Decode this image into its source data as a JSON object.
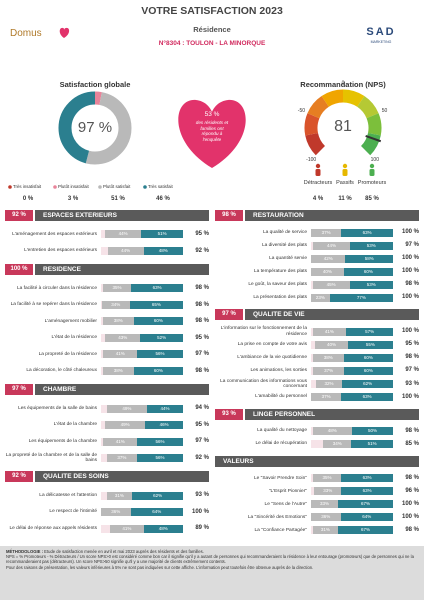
{
  "header": {
    "title": "VOTRE SATISFACTION 2023",
    "subtitle": "Résidence",
    "site": "N°8304 : TOULON - LA MINORQUE",
    "logo_left": "Domus",
    "logo_right": "SAD",
    "logo_right_tag": "MARKETING"
  },
  "summary": {
    "satisfaction": {
      "title": "Satisfaction globale",
      "score": "97 %",
      "categories": [
        "Très insatisfait",
        "Plutôt insatisfait",
        "Plutôt satisfait",
        "Très satisfait"
      ],
      "values": [
        0,
        3,
        51,
        46
      ],
      "value_labels": [
        "0 %",
        "3 %",
        "51 %",
        "46 %"
      ],
      "colors": [
        "#c0392b",
        "#e8849a",
        "#b9b9b9",
        "#2b7f8f"
      ]
    },
    "participation": {
      "value": "53 %",
      "text": "des résidents et familles ont répondu à l'enquête"
    },
    "nps": {
      "title": "Recommandation (NPS)",
      "score": 81,
      "ticks": [
        -100,
        -50,
        0,
        50,
        100
      ],
      "groups": [
        {
          "name": "Détracteurs",
          "value": "4 %",
          "color": "#c0392b"
        },
        {
          "name": "Passifs",
          "value": "11 %",
          "color": "#e6b800"
        },
        {
          "name": "Promoteurs",
          "value": "85 %",
          "color": "#4caf50"
        }
      ]
    }
  },
  "columns": [
    [
      {
        "score": "92 %",
        "title": "ESPACES EXTERIEURS",
        "items": [
          {
            "label": "L'aménagement des espaces extérieurs",
            "values": [
              44,
              51
            ],
            "value_labels": [
              "44%",
              "51%"
            ],
            "total": "95 %"
          },
          {
            "label": "L'entretien des espaces extérieurs",
            "values": [
              44,
              48
            ],
            "value_labels": [
              "44%",
              "48%"
            ],
            "total": "92 %"
          }
        ]
      },
      {
        "score": "100 %",
        "title": "RESIDENCE",
        "items": [
          {
            "label": "La facilité à circuler dans la résidence",
            "values": [
              35,
              63
            ],
            "value_labels": [
              "35%",
              "63%"
            ],
            "total": "98 %"
          },
          {
            "label": "La facilité à se repérer dans la résidence",
            "values": [
              34,
              65
            ],
            "value_labels": [
              "34%",
              "65%"
            ],
            "total": "98 %"
          },
          {
            "label": "L'aménagement mobilier",
            "values": [
              38,
              60
            ],
            "value_labels": [
              "38%",
              "60%"
            ],
            "total": "98 %"
          },
          {
            "label": "L'état de la résidence",
            "values": [
              43,
              52
            ],
            "value_labels": [
              "43%",
              "52%"
            ],
            "total": "95 %"
          },
          {
            "label": "La propreté de la résidence",
            "values": [
              41,
              56
            ],
            "value_labels": [
              "41%",
              "56%"
            ],
            "total": "97 %"
          },
          {
            "label": "La décoration, le côté chaleureux",
            "values": [
              38,
              60
            ],
            "value_labels": [
              "38%",
              "60%"
            ],
            "total": "98 %"
          }
        ]
      },
      {
        "score": "97 %",
        "title": "CHAMBRE",
        "items": [
          {
            "label": "Les équipements de la salle de bains",
            "values": [
              49,
              44
            ],
            "value_labels": [
              "49%",
              "44%"
            ],
            "total": "94 %"
          },
          {
            "label": "L'état de la chambre",
            "values": [
              49,
              46
            ],
            "value_labels": [
              "49%",
              "46%"
            ],
            "total": "95 %"
          },
          {
            "label": "Les équipements de la chambre",
            "values": [
              41,
              56
            ],
            "value_labels": [
              "41%",
              "56%"
            ],
            "total": "97 %"
          },
          {
            "label": "La propreté de la chambre et de la salle de bains",
            "values": [
              37,
              56
            ],
            "value_labels": [
              "37%",
              "56%"
            ],
            "total": "92 %"
          }
        ]
      },
      {
        "score": "92 %",
        "title": "QUALITE DES SOINS",
        "items": [
          {
            "label": "La délicatesse et l'attention",
            "values": [
              31,
              62
            ],
            "value_labels": [
              "31%",
              "62%"
            ],
            "total": "93 %"
          },
          {
            "label": "Le respect de l'intimité",
            "values": [
              36,
              64
            ],
            "value_labels": [
              "36%",
              "64%"
            ],
            "total": "100 %"
          },
          {
            "label": "Le délai de réponse aux appels résidents",
            "values": [
              41,
              48
            ],
            "value_labels": [
              "41%",
              "48%"
            ],
            "total": "89 %"
          }
        ]
      }
    ],
    [
      {
        "score": "98 %",
        "title": "RESTAURATION",
        "items": [
          {
            "label": "La qualité de service",
            "values": [
              37,
              63
            ],
            "value_labels": [
              "37%",
              "63%"
            ],
            "total": "100 %"
          },
          {
            "label": "La diversité des plats",
            "values": [
              44,
              53
            ],
            "value_labels": [
              "44%",
              "53%"
            ],
            "total": "97 %"
          },
          {
            "label": "La quantité servie",
            "values": [
              42,
              58
            ],
            "value_labels": [
              "42%",
              "58%"
            ],
            "total": "100 %"
          },
          {
            "label": "La température des plats",
            "values": [
              40,
              60
            ],
            "value_labels": [
              "40%",
              "60%"
            ],
            "total": "100 %"
          },
          {
            "label": "Le goût, la saveur des plats",
            "values": [
              45,
              53
            ],
            "value_labels": [
              "45%",
              "53%"
            ],
            "total": "98 %"
          },
          {
            "label": "La présentation des plats",
            "values": [
              23,
              77
            ],
            "value_labels": [
              "23%",
              "77%"
            ],
            "total": "100 %"
          }
        ]
      },
      {
        "score": "97 %",
        "title": "QUALITE DE VIE",
        "items": [
          {
            "label": "L'information sur le fonctionnement de la résidence",
            "values": [
              41,
              57
            ],
            "value_labels": [
              "41%",
              "57%"
            ],
            "total": "100 %"
          },
          {
            "label": "La prise en compte de votre avis",
            "values": [
              40,
              55
            ],
            "value_labels": [
              "40%",
              "55%"
            ],
            "total": "95 %"
          },
          {
            "label": "L'ambiance de la vie quotidienne",
            "values": [
              38,
              60
            ],
            "value_labels": [
              "38%",
              "60%"
            ],
            "total": "98 %"
          },
          {
            "label": "Les animations, les sorties",
            "values": [
              37,
              60
            ],
            "value_labels": [
              "37%",
              "60%"
            ],
            "total": "97 %"
          },
          {
            "label": "La communication des informations vous concernant",
            "values": [
              32,
              62
            ],
            "value_labels": [
              "32%",
              "62%"
            ],
            "total": "93 %"
          },
          {
            "label": "L'amabilité du personnel",
            "values": [
              37,
              63
            ],
            "value_labels": [
              "37%",
              "63%"
            ],
            "total": "100 %"
          }
        ]
      },
      {
        "score": "93 %",
        "title": "LINGE PERSONNEL",
        "items": [
          {
            "label": "La qualité du nettoyage",
            "values": [
              48,
              50
            ],
            "value_labels": [
              "48%",
              "50%"
            ],
            "total": "98 %"
          },
          {
            "label": "Le délai de récupération",
            "values": [
              34,
              51
            ],
            "value_labels": [
              "34%",
              "51%"
            ],
            "total": "85 %"
          }
        ]
      },
      {
        "title": "VALEURS",
        "items": [
          {
            "label": "Le \"Savoir Prendre Soin\"",
            "values": [
              35,
              63
            ],
            "value_labels": [
              "35%",
              "63%"
            ],
            "total": "98 %"
          },
          {
            "label": "\"L'Esprit Pionnier\"",
            "values": [
              33,
              63
            ],
            "value_labels": [
              "33%",
              "63%"
            ],
            "total": "96 %"
          },
          {
            "label": "Le \"Sens de l'Autre\"",
            "values": [
              33,
              67
            ],
            "value_labels": [
              "33%",
              "67%"
            ],
            "total": "100 %"
          },
          {
            "label": "La \"Sincérité des Emotions\"",
            "values": [
              36,
              64
            ],
            "value_labels": [
              "36%",
              "64%"
            ],
            "total": "100 %"
          },
          {
            "label": "La \"Confiance Partagée\"",
            "values": [
              31,
              67
            ],
            "value_labels": [
              "31%",
              "67%"
            ],
            "total": "98 %"
          }
        ]
      }
    ]
  ],
  "footer": {
    "label": "MÉTHODOLOGIE :",
    "lines": [
      "Etude de satisfaction menée en avril et mai 2023 auprès des résidents et des familles.",
      "NPS = % Promoteurs - % Détracteurs / Un score NPS>0 est considéré comme bon car il signifie qu'il y a autant de personnes qui recommanderaient la résidence à leur entourage (promoteurs) que de personnes qui ne la recommanderaient pas (détracteurs). Un score NPS>50 signifie qu'il y a une majorité de clients extrêmement contents.",
      "Pour des raisons de présentation, les valeurs inférieures à 5% ne sont pas indiquées sur cette affiche. L'information peut toutefois être obtenue auprès de la direction."
    ]
  }
}
